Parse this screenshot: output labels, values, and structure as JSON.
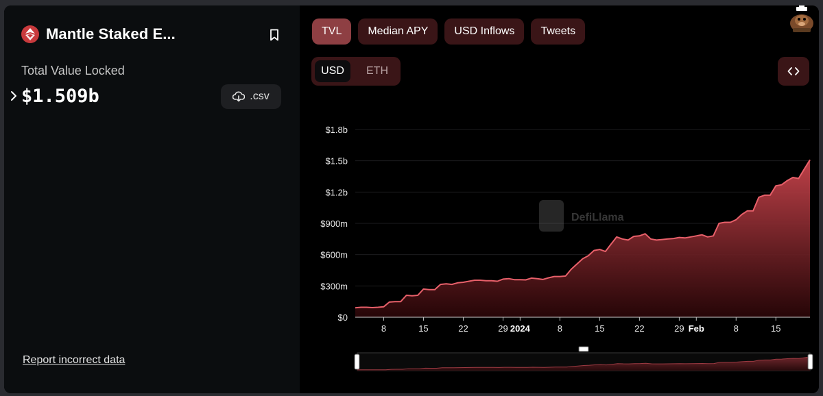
{
  "protocol": {
    "name": "Mantle Staked E...",
    "metric_label": "Total Value Locked",
    "metric_value": "$1.509b",
    "csv_label": ".csv",
    "report_label": "Report incorrect data"
  },
  "tabs": [
    {
      "label": "TVL",
      "active": true
    },
    {
      "label": "Median APY",
      "active": false
    },
    {
      "label": "USD Inflows",
      "active": false
    },
    {
      "label": "Tweets",
      "active": false
    }
  ],
  "currency_toggle": {
    "options": [
      "USD",
      "ETH"
    ],
    "selected": "USD"
  },
  "colors": {
    "accent": "#e8606a",
    "tab_bg": "#3a1517",
    "tab_active": "#8e3f43",
    "panel_bg": "#0b0d0f"
  },
  "icons": {
    "logo": "mantle-logo-icon",
    "bookmark": "bookmark-icon",
    "download": "cloud-download-icon",
    "expand": "chevron-right-icon",
    "embed": "code-brackets-icon",
    "avatar": "llama-avatar-icon"
  },
  "chart_data": {
    "type": "area",
    "watermark": "DefiLlama",
    "ylim": [
      0,
      1800000000
    ],
    "yticks": [
      {
        "value": 0,
        "label": "$0"
      },
      {
        "value": 300000000,
        "label": "$300m"
      },
      {
        "value": 600000000,
        "label": "$600m"
      },
      {
        "value": 900000000,
        "label": "$900m"
      },
      {
        "value": 1200000000,
        "label": "$1.2b"
      },
      {
        "value": 1500000000,
        "label": "$1.5b"
      },
      {
        "value": 1800000000,
        "label": "$1.8b"
      }
    ],
    "xlim": [
      "2023-12-03",
      "2024-02-21"
    ],
    "xticks": [
      {
        "date": "2023-12-08",
        "label": "8",
        "bold": false
      },
      {
        "date": "2023-12-15",
        "label": "15",
        "bold": false
      },
      {
        "date": "2023-12-22",
        "label": "22",
        "bold": false
      },
      {
        "date": "2023-12-29",
        "label": "29",
        "bold": false
      },
      {
        "date": "2024-01-01",
        "label": "2024",
        "bold": true
      },
      {
        "date": "2024-01-08",
        "label": "8",
        "bold": false
      },
      {
        "date": "2024-01-15",
        "label": "15",
        "bold": false
      },
      {
        "date": "2024-01-22",
        "label": "22",
        "bold": false
      },
      {
        "date": "2024-01-29",
        "label": "29",
        "bold": false
      },
      {
        "date": "2024-02-01",
        "label": "Feb",
        "bold": true
      },
      {
        "date": "2024-02-08",
        "label": "8",
        "bold": false
      },
      {
        "date": "2024-02-15",
        "label": "15",
        "bold": false
      }
    ],
    "series": [
      {
        "x": [
          "2023-12-03",
          "2023-12-04",
          "2023-12-05",
          "2023-12-06",
          "2023-12-07",
          "2023-12-08",
          "2023-12-09",
          "2023-12-10",
          "2023-12-11",
          "2023-12-12",
          "2023-12-13",
          "2023-12-14",
          "2023-12-15",
          "2023-12-16",
          "2023-12-17",
          "2023-12-18",
          "2023-12-19",
          "2023-12-20",
          "2023-12-21",
          "2023-12-22",
          "2023-12-23",
          "2023-12-24",
          "2023-12-25",
          "2023-12-26",
          "2023-12-27",
          "2023-12-28",
          "2023-12-29",
          "2023-12-30",
          "2023-12-31",
          "2024-01-01",
          "2024-01-02",
          "2024-01-03",
          "2024-01-04",
          "2024-01-05",
          "2024-01-06",
          "2024-01-07",
          "2024-01-08",
          "2024-01-09",
          "2024-01-10",
          "2024-01-11",
          "2024-01-12",
          "2024-01-13",
          "2024-01-14",
          "2024-01-15",
          "2024-01-16",
          "2024-01-17",
          "2024-01-18",
          "2024-01-19",
          "2024-01-20",
          "2024-01-21",
          "2024-01-22",
          "2024-01-23",
          "2024-01-24",
          "2024-01-25",
          "2024-01-26",
          "2024-01-27",
          "2024-01-28",
          "2024-01-29",
          "2024-01-30",
          "2024-01-31",
          "2024-02-01",
          "2024-02-02",
          "2024-02-03",
          "2024-02-04",
          "2024-02-05",
          "2024-02-06",
          "2024-02-07",
          "2024-02-08",
          "2024-02-09",
          "2024-02-10",
          "2024-02-11",
          "2024-02-12",
          "2024-02-13",
          "2024-02-14",
          "2024-02-15",
          "2024-02-16",
          "2024-02-17",
          "2024-02-18",
          "2024-02-19",
          "2024-02-20",
          "2024-02-21"
        ],
        "values": [
          90000000,
          95000000,
          95000000,
          92000000,
          95000000,
          100000000,
          145000000,
          150000000,
          150000000,
          210000000,
          205000000,
          210000000,
          270000000,
          265000000,
          265000000,
          315000000,
          320000000,
          315000000,
          330000000,
          335000000,
          345000000,
          355000000,
          355000000,
          350000000,
          350000000,
          345000000,
          365000000,
          370000000,
          360000000,
          360000000,
          358000000,
          375000000,
          370000000,
          362000000,
          378000000,
          390000000,
          390000000,
          395000000,
          460000000,
          510000000,
          560000000,
          590000000,
          640000000,
          650000000,
          630000000,
          700000000,
          770000000,
          750000000,
          740000000,
          775000000,
          780000000,
          800000000,
          750000000,
          740000000,
          745000000,
          750000000,
          755000000,
          765000000,
          760000000,
          770000000,
          780000000,
          790000000,
          770000000,
          780000000,
          900000000,
          910000000,
          910000000,
          935000000,
          985000000,
          1020000000,
          1020000000,
          1150000000,
          1170000000,
          1170000000,
          1260000000,
          1270000000,
          1310000000,
          1340000000,
          1330000000,
          1420000000,
          1509000000
        ]
      }
    ]
  }
}
